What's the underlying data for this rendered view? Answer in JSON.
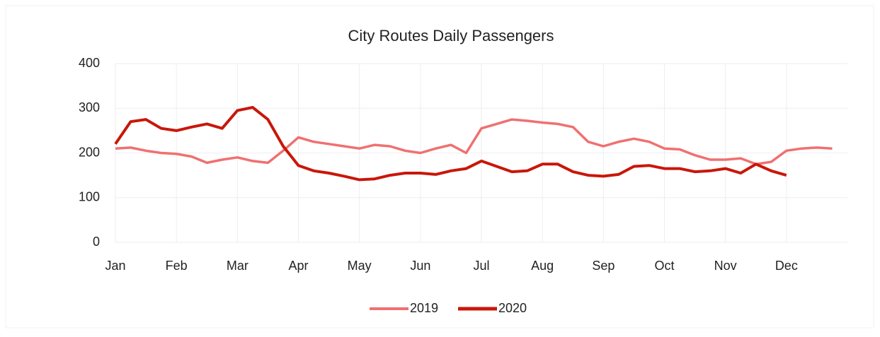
{
  "chart_data": {
    "type": "line",
    "title": "City Routes Daily Passengers",
    "categories": [
      "Jan",
      null,
      null,
      null,
      "Feb",
      null,
      null,
      null,
      "Mar",
      null,
      null,
      null,
      "Apr",
      null,
      null,
      null,
      "May",
      null,
      null,
      null,
      "Jun",
      null,
      null,
      null,
      "Jul",
      null,
      null,
      null,
      "Aug",
      null,
      null,
      null,
      "Sep",
      null,
      null,
      null,
      "Oct",
      null,
      null,
      null,
      "Nov",
      null,
      null,
      null,
      "Dec",
      null,
      null,
      null
    ],
    "series": [
      {
        "name": "2019",
        "color": "#f07070",
        "values": [
          210,
          212,
          205,
          200,
          198,
          192,
          178,
          185,
          190,
          182,
          178,
          205,
          235,
          225,
          220,
          215,
          210,
          218,
          215,
          205,
          200,
          210,
          218,
          200,
          255,
          265,
          275,
          272,
          268,
          265,
          258,
          225,
          215,
          225,
          232,
          225,
          210,
          208,
          195,
          185,
          185,
          188,
          175,
          180,
          205,
          210,
          212,
          210
        ]
      },
      {
        "name": "2020",
        "color": "#c8170a",
        "values": [
          220,
          270,
          275,
          255,
          250,
          258,
          265,
          255,
          295,
          302,
          275,
          215,
          172,
          160,
          155,
          148,
          140,
          142,
          150,
          155,
          155,
          152,
          160,
          165,
          182,
          170,
          158,
          160,
          175,
          175,
          158,
          150,
          148,
          152,
          170,
          172,
          165,
          165,
          158,
          160,
          165,
          155,
          175,
          160,
          150,
          null,
          null,
          null
        ]
      }
    ],
    "ylim": [
      0,
      400
    ],
    "yticks": [
      0,
      100,
      200,
      300,
      400
    ],
    "grid": true,
    "legend": "bottom"
  }
}
